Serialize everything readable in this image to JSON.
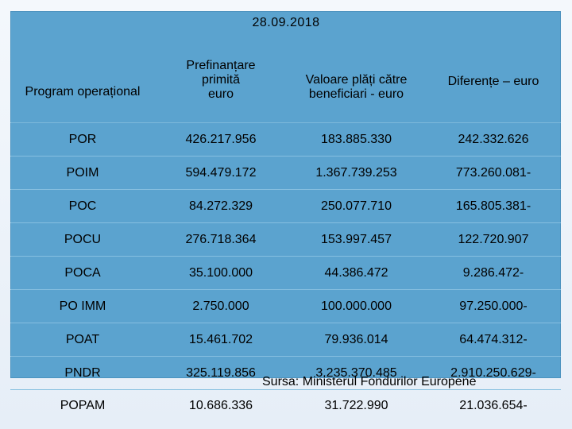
{
  "date": "28.09.2018",
  "headers": {
    "program": "Program operațional",
    "prefinantare": [
      "Prefinanțare",
      "primită",
      "euro"
    ],
    "valoare": [
      "Valoare plăți către",
      "beneficiari - euro"
    ],
    "diferente": "Diferențe – euro"
  },
  "rows": [
    {
      "program": "POR",
      "prefinantare": "426.217.956",
      "valoare": "183.885.330",
      "diferente": "242.332.626",
      "highlight": true
    },
    {
      "program": "POIM",
      "prefinantare": "594.479.172",
      "valoare": "1.367.739.253",
      "diferente": "773.260.081-",
      "highlight": false
    },
    {
      "program": "POC",
      "prefinantare": "84.272.329",
      "valoare": "250.077.710",
      "diferente": "165.805.381-",
      "highlight": false
    },
    {
      "program": "POCU",
      "prefinantare": "276.718.364",
      "valoare": "153.997.457",
      "diferente": "122.720.907",
      "highlight": true
    },
    {
      "program": "POCA",
      "prefinantare": "35.100.000",
      "valoare": "44.386.472",
      "diferente": "9.286.472-",
      "highlight": false
    },
    {
      "program": "PO IMM",
      "prefinantare": "2.750.000",
      "valoare": "100.000.000",
      "diferente": "97.250.000-",
      "highlight": false
    },
    {
      "program": "POAT",
      "prefinantare": "15.461.702",
      "valoare": "79.936.014",
      "diferente": "64.474.312-",
      "highlight": false
    },
    {
      "program": "PNDR",
      "prefinantare": "325.119.856",
      "valoare": "3.235.370.485",
      "diferente": "2.910.250.629-",
      "highlight": false
    },
    {
      "program": "POPAM",
      "prefinantare": "10.686.336",
      "valoare": "31.722.990",
      "diferente": "21.036.654-",
      "highlight": false
    }
  ],
  "source": "Sursa: Ministerul Fondurilor Europene",
  "colors": {
    "table_bg": "#5ba3cf",
    "highlight_text": "#e8251e"
  }
}
